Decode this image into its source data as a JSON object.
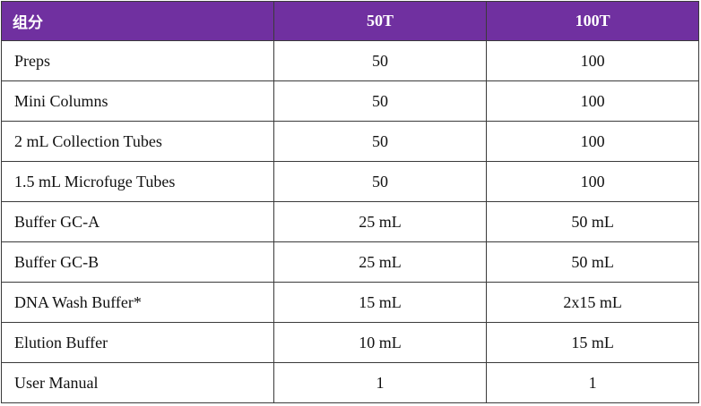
{
  "table": {
    "headers": [
      "组分",
      "50T",
      "100T"
    ],
    "rows": [
      [
        "Preps",
        "50",
        "100"
      ],
      [
        "Mini Columns",
        "50",
        "100"
      ],
      [
        "2 mL Collection Tubes",
        "50",
        "100"
      ],
      [
        "1.5 mL Microfuge Tubes",
        "50",
        "100"
      ],
      [
        "Buffer GC-A",
        "25 mL",
        "50 mL"
      ],
      [
        "Buffer GC-B",
        "25 mL",
        "50 mL"
      ],
      [
        "DNA Wash Buffer*",
        "15 mL",
        "2x15 mL"
      ],
      [
        "Elution Buffer",
        "10 mL",
        "15 mL"
      ],
      [
        "User Manual",
        "1",
        "1"
      ]
    ]
  },
  "colors": {
    "header_bg": "#7030a0",
    "header_text": "#ffffff",
    "border": "#3a3a3a"
  }
}
